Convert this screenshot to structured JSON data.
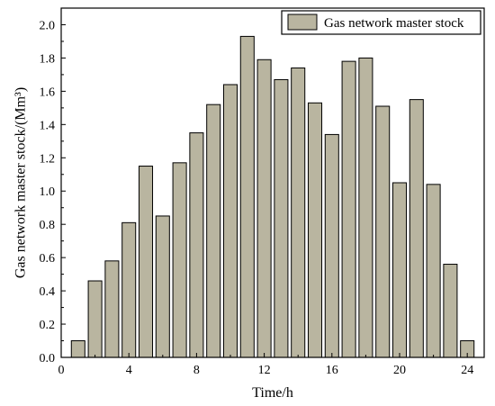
{
  "chart_data": {
    "type": "bar",
    "x": [
      1,
      2,
      3,
      4,
      5,
      6,
      7,
      8,
      9,
      10,
      11,
      12,
      13,
      14,
      15,
      16,
      17,
      18,
      19,
      20,
      21,
      22,
      23,
      24
    ],
    "series": [
      {
        "name": "Gas network master stock",
        "values": [
          0.1,
          0.46,
          0.58,
          0.81,
          1.15,
          0.85,
          1.17,
          1.35,
          1.52,
          1.64,
          1.93,
          1.79,
          1.67,
          1.74,
          1.53,
          1.34,
          1.78,
          1.8,
          1.51,
          1.05,
          1.55,
          1.04,
          0.56,
          0.1
        ],
        "color": "#b9b5a0"
      }
    ],
    "xlabel": "Time/h",
    "ylabel": "Gas network master stock/(Mm³)",
    "xlim": [
      0,
      25
    ],
    "ylim": [
      0,
      2.1
    ],
    "xticks": [
      "0",
      "4",
      "8",
      "12",
      "16",
      "20",
      "24"
    ],
    "yticks": [
      "0.0",
      "0.2",
      "0.4",
      "0.6",
      "0.8",
      "1.0",
      "1.2",
      "1.4",
      "1.6",
      "1.8",
      "2.0"
    ],
    "legend_position": "top-right",
    "grid": false
  }
}
